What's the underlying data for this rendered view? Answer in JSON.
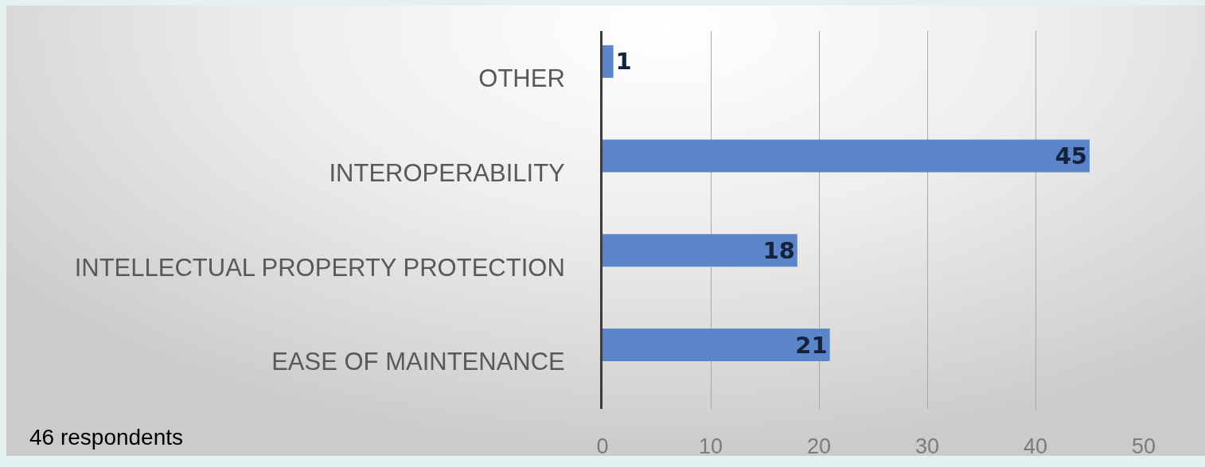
{
  "chart_data": {
    "type": "bar",
    "orientation": "horizontal",
    "categories": [
      "OTHER",
      "INTEROPERABILITY",
      "INTELLECTUAL PROPERTY PROTECTION",
      "EASE OF MAINTENANCE"
    ],
    "values": [
      1,
      45,
      18,
      21
    ],
    "color": "#5b85c9",
    "xlim": [
      0,
      50
    ],
    "xticks": [
      0,
      10,
      20,
      30,
      40,
      50
    ],
    "grid": "x",
    "data_labels": true,
    "annotations": [
      "46 respondents"
    ]
  }
}
